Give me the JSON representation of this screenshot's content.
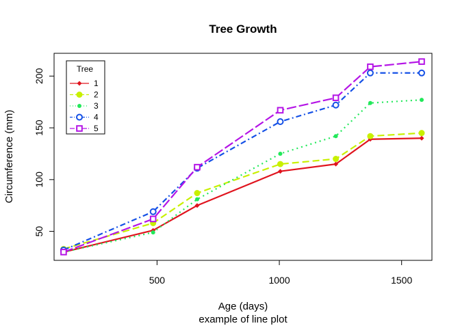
{
  "chart_data": {
    "type": "line",
    "title": "Tree Growth",
    "xlabel": "Age (days)",
    "sublabel": "example of line plot",
    "ylabel": "Circumference (mm)",
    "xlim": [
      79,
      1624
    ],
    "ylim": [
      22,
      222
    ],
    "xticks": [
      500,
      1000,
      1500
    ],
    "yticks": [
      50,
      100,
      150,
      200
    ],
    "grid": false,
    "legend": {
      "title": "Tree",
      "position": "top-left"
    },
    "x": [
      118,
      484,
      664,
      1004,
      1231,
      1372,
      1582
    ],
    "series": [
      {
        "name": "1",
        "color": "#e0141e",
        "marker": "diamond",
        "dash": "",
        "values": [
          30,
          51,
          75,
          108,
          115,
          139,
          140
        ]
      },
      {
        "name": "2",
        "color": "#c8f000",
        "marker": "filled-circle",
        "dash": "10,5",
        "values": [
          33,
          58,
          87,
          115,
          120,
          142,
          145
        ]
      },
      {
        "name": "3",
        "color": "#22e85a",
        "marker": "small-circle",
        "dash": "2,5",
        "values": [
          30,
          49,
          81,
          125,
          142,
          174,
          177
        ]
      },
      {
        "name": "4",
        "color": "#1450e6",
        "marker": "open-circle",
        "dash": "8,4,2,4",
        "values": [
          32,
          69,
          111,
          156,
          172,
          203,
          203
        ]
      },
      {
        "name": "5",
        "color": "#b414e6",
        "marker": "open-square",
        "dash": "14,4",
        "values": [
          30,
          62,
          112,
          167,
          179,
          209,
          214
        ]
      }
    ]
  }
}
